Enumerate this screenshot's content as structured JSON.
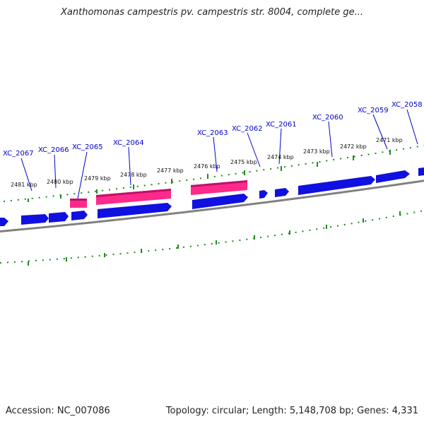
{
  "title": "Xanthomonas campestris pv. campestris str. 8004, complete ge...",
  "accession": "Accession: NC_007086",
  "topology": "Topology: circular; Length: 5,148,708 bp; Genes: 4,331",
  "colors": {
    "forward_gene": "#1010e0",
    "reverse_gene": "#ff2a8a",
    "backbone": "#808080",
    "ticks": "#1e8a1e",
    "gene_label": "#0000cc"
  },
  "kbp_labels": [
    "2481 kbp",
    "2480 kbp",
    "2479 kbp",
    "2478 kbp",
    "2477 kbp",
    "2476 kbp",
    "2475 kbp",
    "2474 kbp",
    "2473 kbp",
    "2472 kbp",
    "2471 kbp"
  ],
  "gene_labels": [
    "XC_2067",
    "XC_2066",
    "XC_2065",
    "XC_2064",
    "XC_2063",
    "XC_2062",
    "XC_2061",
    "XC_2060",
    "XC_2059",
    "XC_2058"
  ]
}
